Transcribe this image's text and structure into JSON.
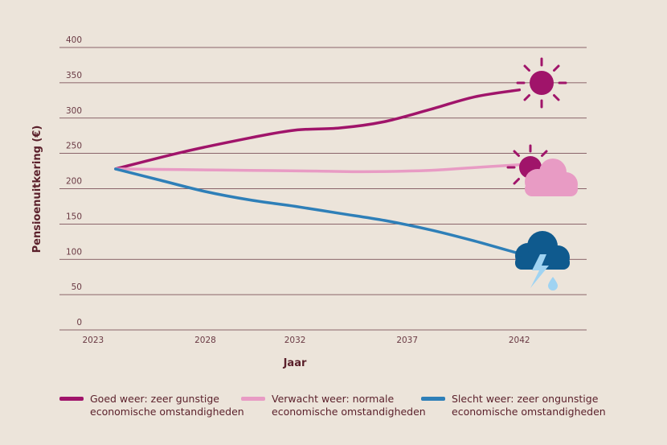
{
  "chart_data": {
    "type": "line",
    "xlabel": "Jaar",
    "ylabel": "Pensioenuitkering (€)",
    "ylim": [
      0,
      400
    ],
    "yticks": [
      0,
      50,
      100,
      150,
      200,
      250,
      300,
      350,
      400
    ],
    "xlim": [
      2021.5,
      2045
    ],
    "xticks": [
      {
        "value": 2023,
        "label": "2023"
      },
      {
        "value": 2028,
        "label": "2028"
      },
      {
        "value": 2032,
        "label": "2032"
      },
      {
        "value": 2037,
        "label": "2037"
      },
      {
        "value": 2042,
        "label": "2042"
      }
    ],
    "grid": "horizontal",
    "legend_position": "bottom",
    "series": [
      {
        "name": "Goed weer: zeer gunstige economische omstandigheden",
        "legend_label": "Goed weer: zeer gunstige\neconomische omstandigheden",
        "color": "#a0146a",
        "icon": "sun-icon",
        "x": [
          2024,
          2027,
          2030,
          2032,
          2034,
          2036,
          2038,
          2040,
          2042
        ],
        "y": [
          228,
          252,
          272,
          283,
          286,
          295,
          312,
          330,
          340
        ]
      },
      {
        "name": "Verwacht weer: normale economische omstandigheden",
        "legend_label": "Verwacht weer: normale\neconomische omstandigheden",
        "color": "#e89bc4",
        "icon": "sun-cloud-icon",
        "x": [
          2024,
          2027,
          2030,
          2033,
          2035,
          2038,
          2040,
          2042
        ],
        "y": [
          228,
          227,
          226,
          225,
          224,
          226,
          230,
          234
        ]
      },
      {
        "name": "Slecht weer: zeer ongunstige economische omstandigheden",
        "legend_label": "Slecht weer: zeer ongunstige\neconomische omstandigheden",
        "color": "#2e7fb8",
        "icon": "storm-cloud-icon",
        "x": [
          2024,
          2026,
          2028,
          2030,
          2032,
          2034,
          2036,
          2038,
          2040,
          2042
        ],
        "y": [
          228,
          212,
          196,
          184,
          175,
          165,
          155,
          142,
          126,
          108
        ]
      }
    ]
  },
  "colors": {
    "background": "#ece4da",
    "grid": "#6a3a44",
    "sun": "#a0146a",
    "cloud_light": "#e89bc4",
    "storm_cloud": "#0f5a8e",
    "lightning": "#9fd3f2"
  }
}
